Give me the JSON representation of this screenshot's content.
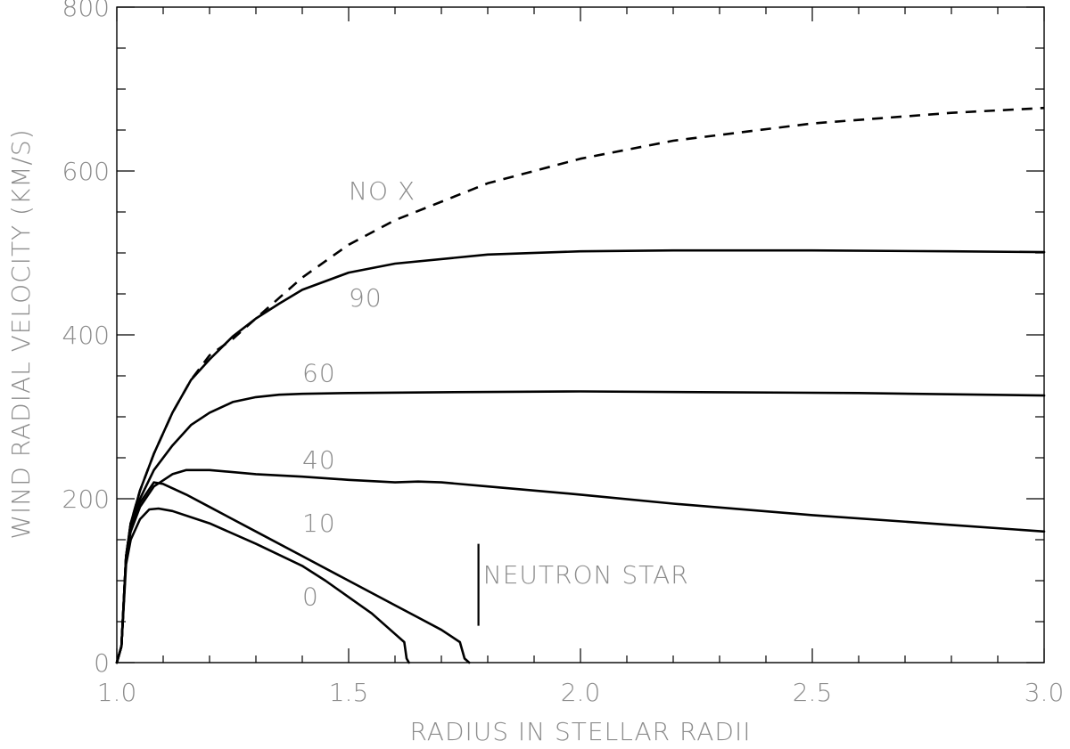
{
  "chart_data": {
    "type": "line",
    "xlabel": "RADIUS IN STELLAR RADII",
    "ylabel": "WIND RADIAL VELOCITY (KM/S)",
    "xlim": [
      1.0,
      3.0
    ],
    "ylim": [
      0,
      800
    ],
    "x_ticks": [
      1.0,
      1.5,
      2.0,
      2.5,
      3.0
    ],
    "x_tick_labels": [
      "1.0",
      "1.5",
      "2.0",
      "2.5",
      "3.0"
    ],
    "y_ticks": [
      0,
      200,
      400,
      600,
      800
    ],
    "y_tick_labels": [
      "0",
      "200",
      "400",
      "600",
      "800"
    ],
    "grid": false,
    "series": [
      {
        "name": "NO X",
        "style": "dashed",
        "x": [
          1.0,
          1.01,
          1.02,
          1.03,
          1.05,
          1.08,
          1.12,
          1.16,
          1.2,
          1.25,
          1.3,
          1.4,
          1.5,
          1.6,
          1.8,
          2.0,
          2.2,
          2.5,
          2.8,
          3.0
        ],
        "y": [
          0,
          20,
          130,
          170,
          210,
          255,
          305,
          345,
          375,
          395,
          420,
          470,
          510,
          540,
          585,
          615,
          637,
          658,
          671,
          677
        ]
      },
      {
        "name": "90",
        "style": "solid",
        "x": [
          1.0,
          1.01,
          1.02,
          1.03,
          1.05,
          1.08,
          1.12,
          1.16,
          1.2,
          1.25,
          1.3,
          1.35,
          1.4,
          1.5,
          1.6,
          1.8,
          2.0,
          2.2,
          2.5,
          2.8,
          3.0
        ],
        "y": [
          0,
          20,
          130,
          170,
          210,
          255,
          305,
          345,
          370,
          398,
          420,
          438,
          455,
          476,
          487,
          498,
          502,
          503,
          503,
          502,
          501
        ]
      },
      {
        "name": "60",
        "style": "solid",
        "x": [
          1.0,
          1.01,
          1.02,
          1.03,
          1.05,
          1.08,
          1.12,
          1.16,
          1.2,
          1.25,
          1.3,
          1.35,
          1.4,
          1.5,
          1.7,
          2.0,
          2.3,
          2.6,
          3.0
        ],
        "y": [
          0,
          20,
          130,
          165,
          200,
          235,
          265,
          290,
          305,
          318,
          324,
          327,
          328,
          329,
          330,
          331,
          330,
          329,
          326
        ]
      },
      {
        "name": "40",
        "style": "solid",
        "x": [
          1.0,
          1.01,
          1.02,
          1.03,
          1.05,
          1.08,
          1.12,
          1.15,
          1.2,
          1.3,
          1.4,
          1.5,
          1.6,
          1.65,
          1.7,
          1.8,
          2.0,
          2.2,
          2.5,
          2.8,
          3.0
        ],
        "y": [
          0,
          20,
          130,
          160,
          190,
          215,
          230,
          235,
          235,
          230,
          227,
          223,
          220,
          221,
          220,
          215,
          205,
          194,
          180,
          168,
          160
        ]
      },
      {
        "name": "10",
        "style": "solid",
        "x": [
          1.0,
          1.01,
          1.02,
          1.03,
          1.05,
          1.08,
          1.1,
          1.15,
          1.2,
          1.3,
          1.4,
          1.5,
          1.6,
          1.65,
          1.7,
          1.74,
          1.75,
          1.76
        ],
        "y": [
          0,
          20,
          130,
          170,
          195,
          220,
          218,
          205,
          190,
          160,
          130,
          100,
          70,
          55,
          40,
          25,
          5,
          0
        ]
      },
      {
        "name": "0",
        "style": "solid",
        "x": [
          1.0,
          1.01,
          1.02,
          1.03,
          1.05,
          1.07,
          1.09,
          1.12,
          1.2,
          1.3,
          1.4,
          1.45,
          1.5,
          1.55,
          1.6,
          1.62,
          1.625,
          1.63
        ],
        "y": [
          0,
          20,
          120,
          150,
          175,
          187,
          188,
          185,
          170,
          145,
          118,
          100,
          80,
          60,
          35,
          25,
          5,
          0
        ]
      }
    ],
    "annotations": [
      {
        "text": "NO X",
        "x": 1.5,
        "y": 565
      },
      {
        "text": "90",
        "x": 1.5,
        "y": 435
      },
      {
        "text": "60",
        "x": 1.4,
        "y": 343
      },
      {
        "text": "40",
        "x": 1.4,
        "y": 237
      },
      {
        "text": "10",
        "x": 1.4,
        "y": 160
      },
      {
        "text": "0",
        "x": 1.4,
        "y": 70
      },
      {
        "text": "NEUTRON STAR",
        "x": 1.79,
        "y": 97
      }
    ],
    "marker": {
      "label": "NEUTRON STAR",
      "x": 1.78,
      "y_range": [
        45,
        145
      ]
    }
  }
}
